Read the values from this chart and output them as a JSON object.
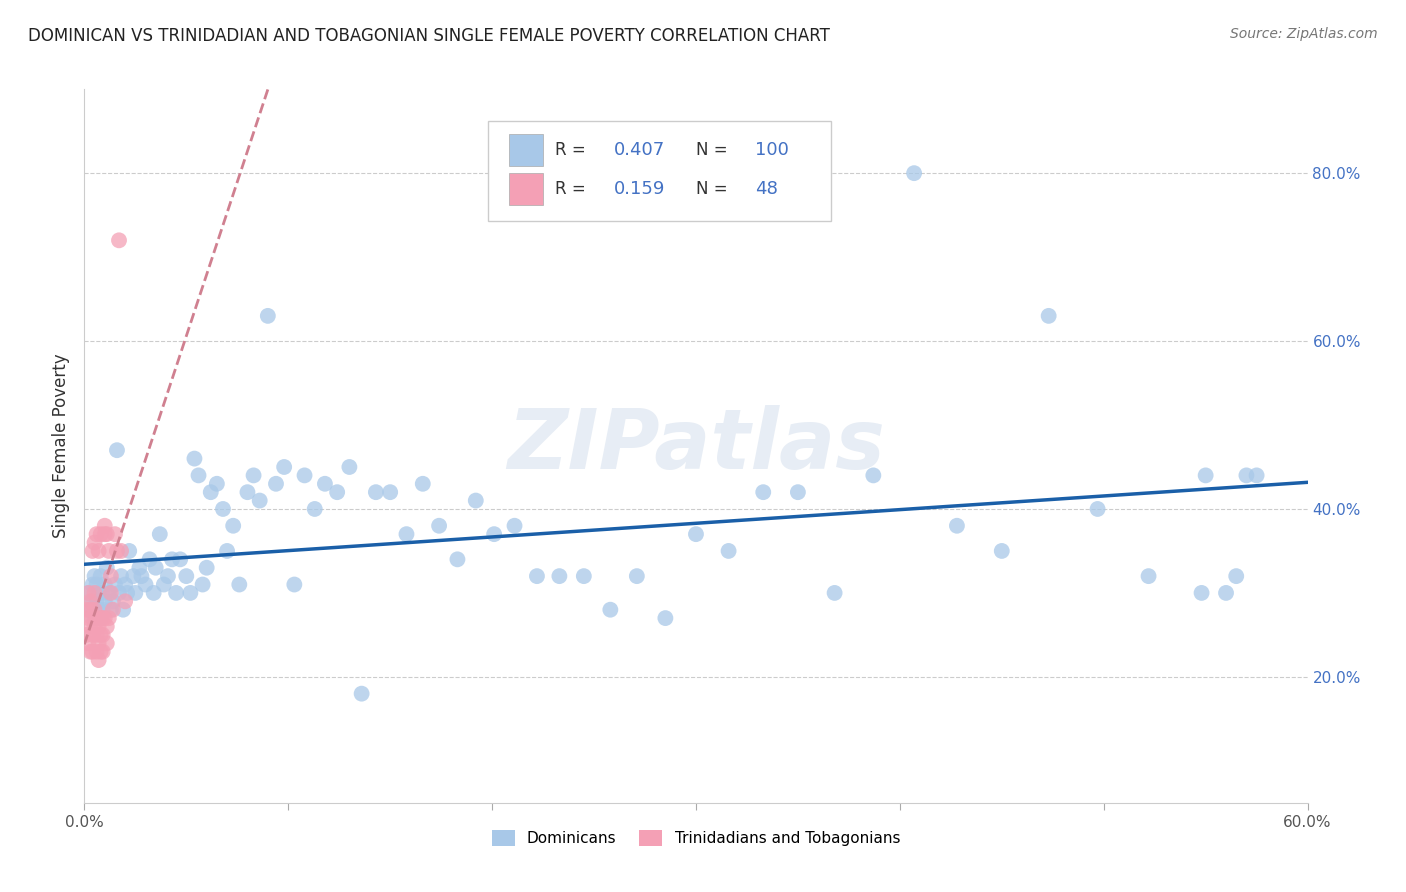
{
  "title": "DOMINICAN VS TRINIDADIAN AND TOBAGONIAN SINGLE FEMALE POVERTY CORRELATION CHART",
  "source": "Source: ZipAtlas.com",
  "ylabel": "Single Female Poverty",
  "right_yticks": [
    0.2,
    0.4,
    0.6,
    0.8
  ],
  "right_yticklabels": [
    "20.0%",
    "40.0%",
    "60.0%",
    "80.0%"
  ],
  "xlim": [
    0.0,
    0.6
  ],
  "ylim": [
    0.05,
    0.9
  ],
  "dominican_R": 0.407,
  "dominican_N": 100,
  "trinidadian_R": 0.159,
  "trinidadian_N": 48,
  "blue_color": "#a8c8e8",
  "blue_line_color": "#1a5fa8",
  "pink_color": "#f4a0b5",
  "pink_line_color": "#d08090",
  "watermark": "ZIPatlas",
  "dominican_x": [
    0.002,
    0.003,
    0.004,
    0.004,
    0.005,
    0.005,
    0.006,
    0.006,
    0.007,
    0.007,
    0.008,
    0.008,
    0.009,
    0.009,
    0.01,
    0.01,
    0.011,
    0.012,
    0.013,
    0.014,
    0.015,
    0.016,
    0.017,
    0.018,
    0.019,
    0.02,
    0.021,
    0.022,
    0.024,
    0.025,
    0.027,
    0.028,
    0.03,
    0.032,
    0.034,
    0.035,
    0.037,
    0.039,
    0.041,
    0.043,
    0.045,
    0.047,
    0.05,
    0.052,
    0.054,
    0.056,
    0.058,
    0.06,
    0.062,
    0.065,
    0.068,
    0.07,
    0.073,
    0.076,
    0.08,
    0.083,
    0.086,
    0.09,
    0.094,
    0.098,
    0.103,
    0.108,
    0.113,
    0.118,
    0.124,
    0.13,
    0.136,
    0.143,
    0.15,
    0.158,
    0.166,
    0.174,
    0.183,
    0.192,
    0.201,
    0.211,
    0.222,
    0.233,
    0.245,
    0.258,
    0.271,
    0.285,
    0.3,
    0.316,
    0.333,
    0.35,
    0.368,
    0.387,
    0.407,
    0.428,
    0.45,
    0.473,
    0.497,
    0.522,
    0.548,
    0.55,
    0.56,
    0.565,
    0.57,
    0.575
  ],
  "dominican_y": [
    0.3,
    0.28,
    0.31,
    0.29,
    0.27,
    0.32,
    0.29,
    0.31,
    0.28,
    0.3,
    0.32,
    0.27,
    0.3,
    0.28,
    0.31,
    0.29,
    0.33,
    0.3,
    0.28,
    0.29,
    0.31,
    0.47,
    0.3,
    0.32,
    0.28,
    0.31,
    0.3,
    0.35,
    0.32,
    0.3,
    0.33,
    0.32,
    0.31,
    0.34,
    0.3,
    0.33,
    0.37,
    0.31,
    0.32,
    0.34,
    0.3,
    0.34,
    0.32,
    0.3,
    0.46,
    0.44,
    0.31,
    0.33,
    0.42,
    0.43,
    0.4,
    0.35,
    0.38,
    0.31,
    0.42,
    0.44,
    0.41,
    0.63,
    0.43,
    0.45,
    0.31,
    0.44,
    0.4,
    0.43,
    0.42,
    0.45,
    0.18,
    0.42,
    0.42,
    0.37,
    0.43,
    0.38,
    0.34,
    0.41,
    0.37,
    0.38,
    0.32,
    0.32,
    0.32,
    0.28,
    0.32,
    0.27,
    0.37,
    0.35,
    0.42,
    0.42,
    0.3,
    0.44,
    0.8,
    0.38,
    0.35,
    0.63,
    0.4,
    0.32,
    0.3,
    0.44,
    0.3,
    0.32,
    0.44,
    0.44
  ],
  "trinidadian_x": [
    0.001,
    0.001,
    0.002,
    0.002,
    0.002,
    0.003,
    0.003,
    0.003,
    0.003,
    0.004,
    0.004,
    0.004,
    0.004,
    0.005,
    0.005,
    0.005,
    0.005,
    0.006,
    0.006,
    0.006,
    0.006,
    0.007,
    0.007,
    0.007,
    0.007,
    0.008,
    0.008,
    0.008,
    0.008,
    0.009,
    0.009,
    0.009,
    0.01,
    0.01,
    0.01,
    0.011,
    0.011,
    0.011,
    0.012,
    0.012,
    0.013,
    0.013,
    0.014,
    0.015,
    0.016,
    0.017,
    0.018,
    0.02
  ],
  "trinidadian_y": [
    0.28,
    0.25,
    0.3,
    0.27,
    0.24,
    0.29,
    0.26,
    0.23,
    0.28,
    0.27,
    0.25,
    0.23,
    0.35,
    0.3,
    0.28,
    0.26,
    0.36,
    0.27,
    0.25,
    0.23,
    0.37,
    0.26,
    0.24,
    0.22,
    0.35,
    0.27,
    0.25,
    0.23,
    0.37,
    0.27,
    0.25,
    0.23,
    0.27,
    0.38,
    0.37,
    0.26,
    0.24,
    0.37,
    0.27,
    0.35,
    0.3,
    0.32,
    0.28,
    0.37,
    0.35,
    0.72,
    0.35,
    0.29
  ]
}
